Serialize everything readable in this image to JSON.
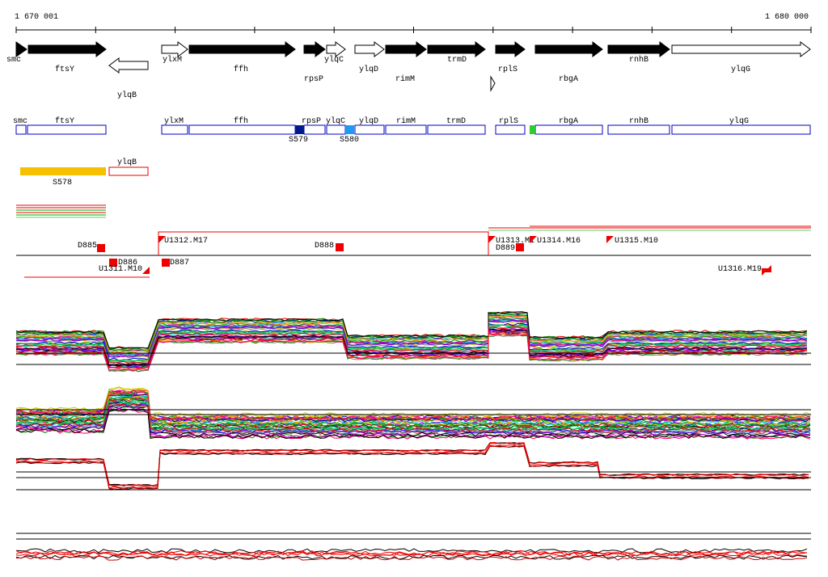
{
  "ruler": {
    "start": "1 670 001",
    "end": "1 680 000"
  },
  "genes": [
    "smc",
    "ftsY",
    "ylqB",
    "ylxM",
    "ffh",
    "rpsP",
    "ylqC",
    "ylqD",
    "rimM",
    "trmD",
    "rplS",
    "rbgA",
    "rnhB",
    "ylqG"
  ],
  "annotations": [
    "smc",
    "ftsY",
    "ylxM",
    "ffh",
    "rpsP",
    "ylqC",
    "ylqD",
    "rimM",
    "trmD",
    "rplS",
    "rbgA",
    "rnhB",
    "ylqG"
  ],
  "markers": [
    "S579",
    "S580"
  ],
  "ylqB_box": "ylqB",
  "S578": "S578",
  "segments": [
    "D885",
    "D886",
    "U1311.M10",
    "U1312.M17",
    "D887",
    "D888",
    "U1313.M1",
    "D889",
    "U1314.M16",
    "U1315.M10",
    "U1316.M19"
  ]
}
